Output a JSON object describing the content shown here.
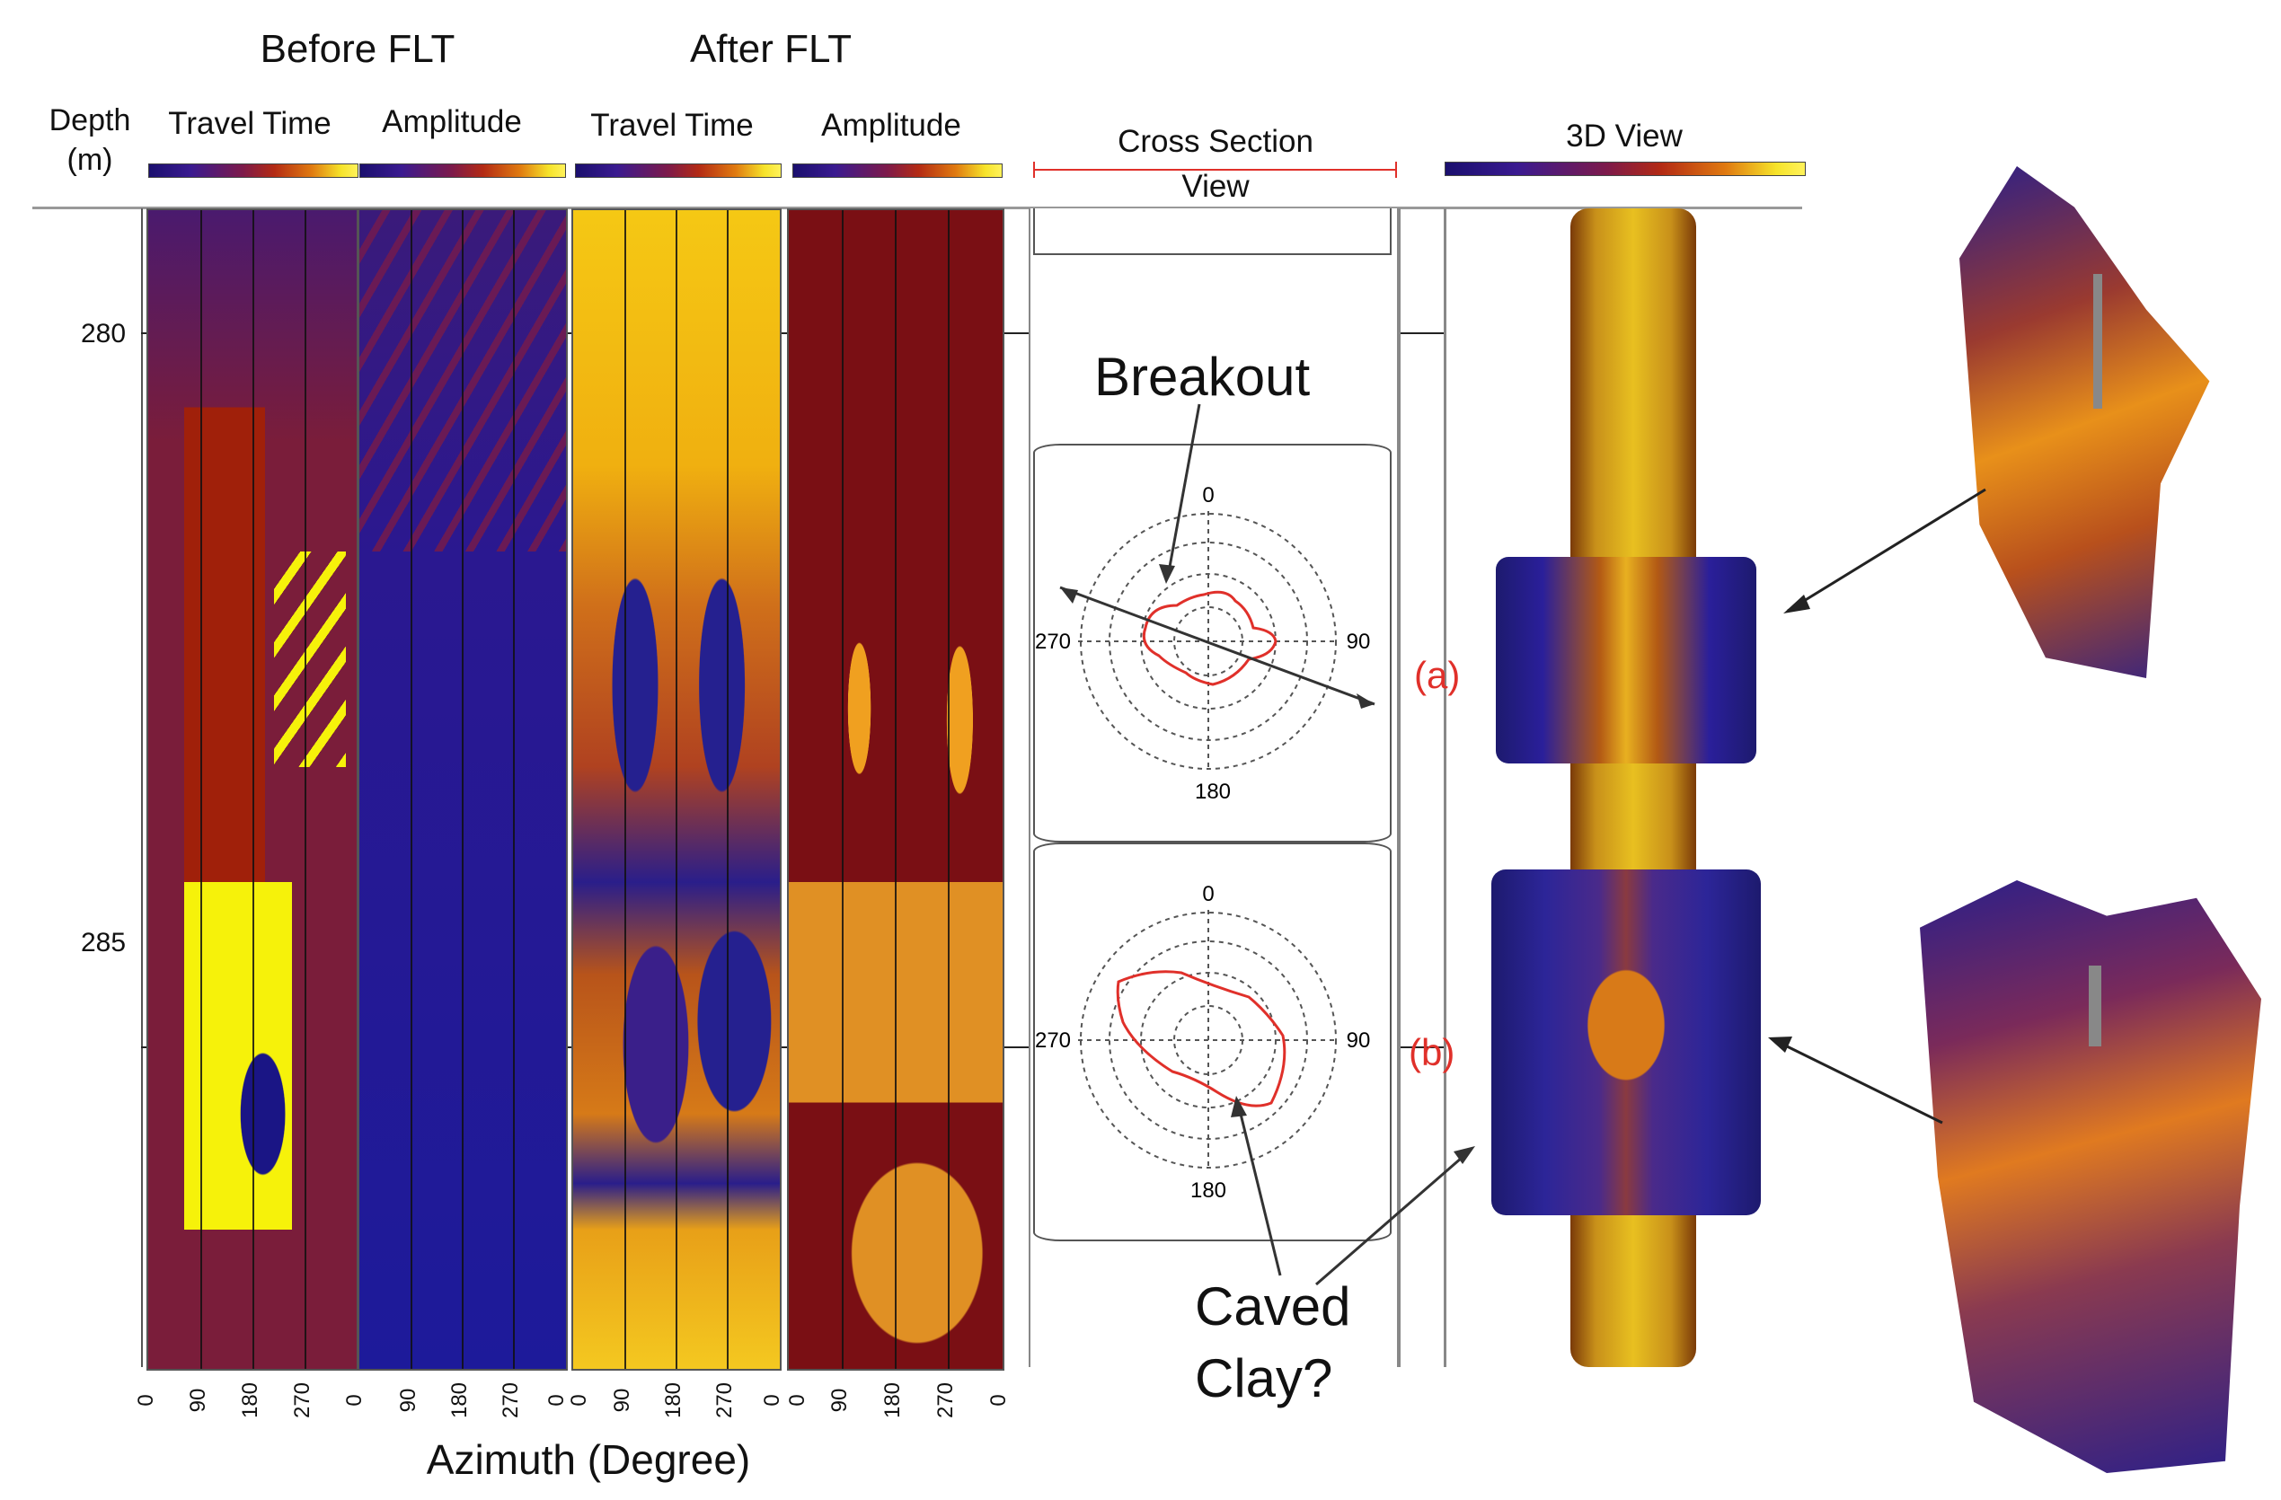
{
  "headers": {
    "before": "Before FLT",
    "after": "After FLT",
    "depth": "Depth",
    "depth_unit": "(m)",
    "travel_time_1": "Travel Time",
    "amplitude_1": "Amplitude",
    "travel_time_2": "Travel Time",
    "amplitude_2": "Amplitude",
    "cross_section_1": "Cross Section",
    "cross_section_2": "View",
    "view3d": "3D View"
  },
  "depth_ticks": [
    "280",
    "285"
  ],
  "azimuth_ticks": [
    "0",
    "90",
    "180",
    "270",
    "0"
  ],
  "x_axis_label": "Azimuth (Degree)",
  "polar_labels": {
    "top": "0",
    "right": "90",
    "bottom": "180",
    "left": "270"
  },
  "annotations": {
    "breakout": "Breakout",
    "caved_1": "Caved",
    "caved_2": "Clay?",
    "label_a": "(a)",
    "label_b": "(b)"
  },
  "colors": {
    "colormap_low": "#1a0f6e",
    "colormap_mid": "#b32a14",
    "colormap_high": "#fff25a",
    "annotation_red": "#e0302a"
  }
}
